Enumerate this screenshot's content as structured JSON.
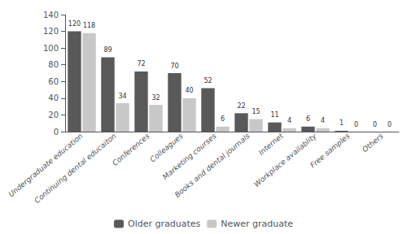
{
  "chart_data": {
    "type": "bar",
    "categories": [
      "Undergraduate education",
      "Continuing dental educaiton",
      "Conferences",
      "Colleagues",
      "Marketing courses",
      "Books and dental journals",
      "Internet",
      "Workplace availablity",
      "Free samples",
      "Others"
    ],
    "series": [
      {
        "name": "Older graduates",
        "color": "#595959",
        "values": [
          120,
          89,
          72,
          70,
          52,
          22,
          11,
          6,
          1,
          0
        ]
      },
      {
        "name": "Newer graduate",
        "color": "#c8c8c8",
        "values": [
          118,
          34,
          32,
          40,
          6,
          15,
          4,
          4,
          0,
          0
        ]
      }
    ],
    "ylim": [
      0,
      140
    ],
    "yticks": [
      0,
      20,
      40,
      60,
      80,
      100,
      120,
      140
    ],
    "data_labels": true,
    "grid": false,
    "legend": "bottom"
  }
}
